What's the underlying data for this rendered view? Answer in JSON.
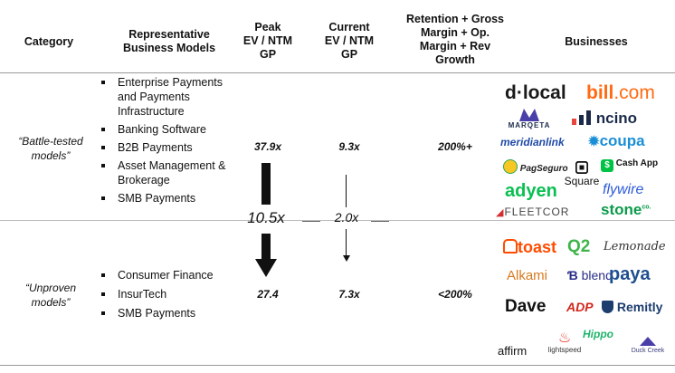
{
  "headers": {
    "category": "Category",
    "models": "Representative\nBusiness Models",
    "peak": "Peak\nEV / NTM\nGP",
    "current": "Current\nEV / NTM\nGP",
    "retention": "Retention + Gross\nMargin + Op.\nMargin + Rev\nGrowth",
    "businesses": "Businesses"
  },
  "rows": [
    {
      "category": "“Battle-tested\nmodels”",
      "models": [
        "Enterprise Payments and Payments Infrastructure",
        "Banking Software",
        "B2B Payments",
        "Asset Management & Brokerage",
        "SMB Payments"
      ],
      "peak": "37.9x",
      "current": "9.3x",
      "retention": "200%+"
    },
    {
      "category": "“Unproven\nmodels”",
      "models": [
        "Consumer Finance",
        "InsurTech",
        "SMB Payments"
      ],
      "peak": "27.4",
      "current": "7.3x",
      "retention": "<200%"
    }
  ],
  "multiples": {
    "peak_drop": "10.5x",
    "current_drop": "2.0x"
  },
  "logos": {
    "dlocal": "d·local",
    "bill": "bill",
    "bill_suffix": ".com",
    "marqeta": "MARQETA",
    "ncino": "ncino",
    "meridianlink": "meridianlink",
    "coupa": "coupa",
    "pagseguro": "PagSeguro",
    "square": "Square",
    "cashapp": "Cash App",
    "adyen": "adyen",
    "flywire": "flywire",
    "fleetcor": "FLEETCOR",
    "stone": "stone",
    "stone_suffix": "co.",
    "toast": "toast",
    "q2": "Q2",
    "lemonade": "Lemonade",
    "alkami": "Alkami",
    "blend": "blend",
    "paya": "paya",
    "dave": "Dave",
    "adp": "ADP",
    "remitly": "Remitly",
    "hippo": "Hippo",
    "affirm": "affirm",
    "lightspeed": "lightspeed",
    "duckcreek": "Duck Creek"
  },
  "colors": {
    "dlocal": "#1a1a1a",
    "bill": "#ff6a13",
    "marqeta": "#1b2a4a",
    "ncino": "#1b2a4a",
    "meridianlink": "#1f4aa8",
    "coupa": "#1a8fd6",
    "cashapp": "#00c244",
    "adyen": "#0abf53",
    "flywire": "#2e5bd9",
    "fleetcor": "#444444",
    "stone": "#0b9a4a",
    "toast": "#ff4c00",
    "q2": "#3fb54a",
    "lemonade": "#333333",
    "alkami": "#d77a1f",
    "blend": "#2b2f8a",
    "paya": "#1f4f8f",
    "adp": "#d0271d",
    "remitly": "#1c3d6e",
    "hippo": "#1fb46b",
    "lightspeed": "#e2352b",
    "duckcreek": "#3a3a7a"
  }
}
